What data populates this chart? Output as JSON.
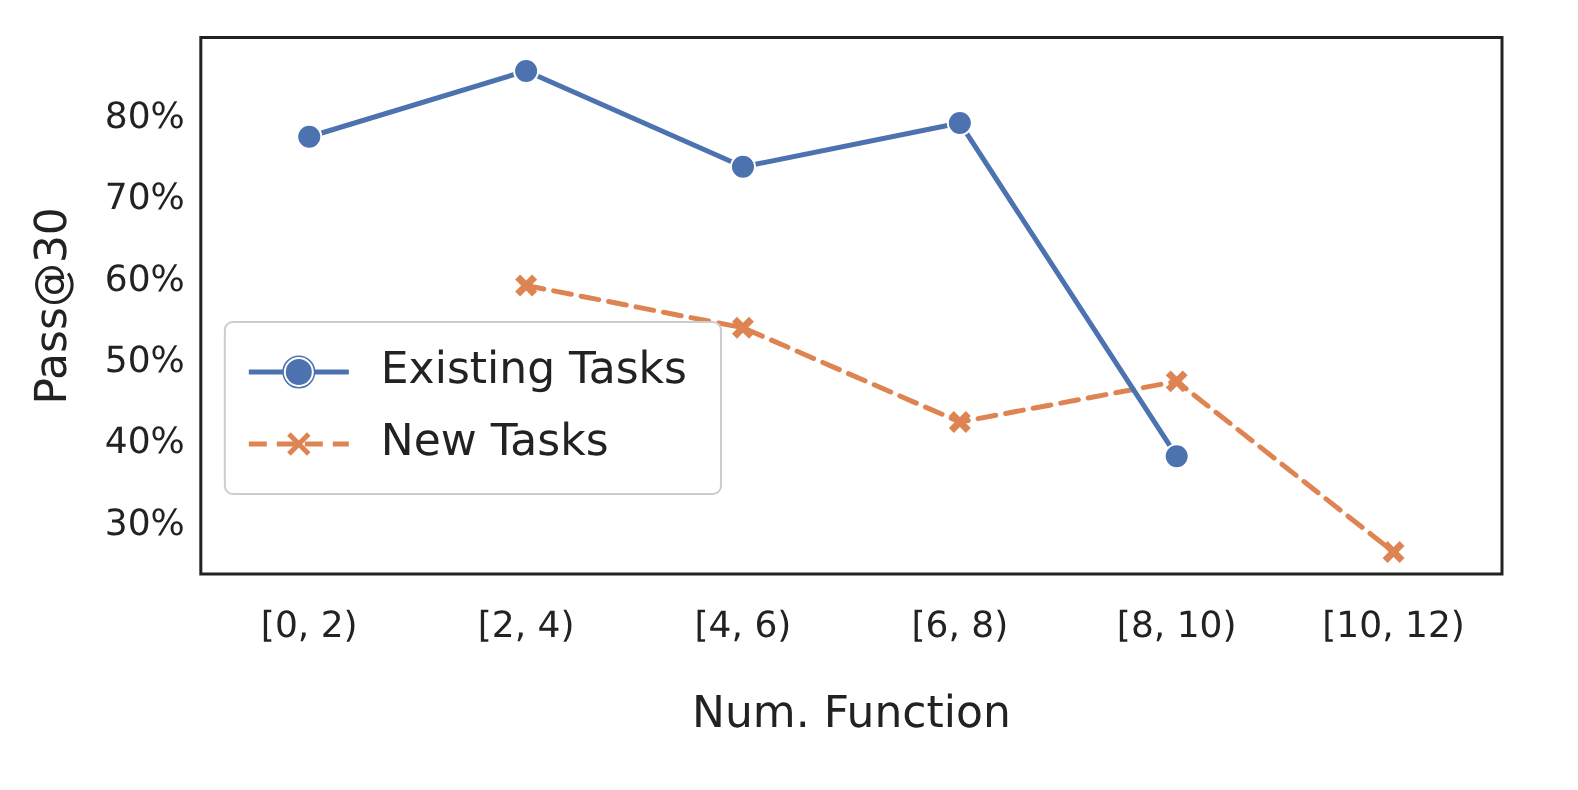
{
  "chart_data": {
    "type": "line",
    "xlabel": "Num. Function",
    "ylabel": "Pass@30",
    "categories": [
      "[0, 2)",
      "[2, 4)",
      "[4, 6)",
      "[6, 8)",
      "[8, 10)",
      "[10, 12)"
    ],
    "series": [
      {
        "name": "Existing Tasks",
        "color": "#4c72b0",
        "values": [
          77.8,
          85.9,
          74.1,
          79.5,
          38.5,
          null
        ],
        "marker": "circle",
        "line_style": "solid"
      },
      {
        "name": "New Tasks",
        "color": "#dd8452",
        "values": [
          null,
          59.5,
          54.3,
          42.7,
          47.7,
          26.7
        ],
        "marker": "cross",
        "line_style": "dashed"
      }
    ],
    "ylim": [
      24,
      90
    ],
    "yticks": [
      {
        "value": 30,
        "label": "30%"
      },
      {
        "value": 40,
        "label": "40%"
      },
      {
        "value": 50,
        "label": "50%"
      },
      {
        "value": 60,
        "label": "60%"
      },
      {
        "value": 70,
        "label": "70%"
      },
      {
        "value": 80,
        "label": "80%"
      }
    ],
    "grid": false,
    "legend": "bottom left"
  }
}
